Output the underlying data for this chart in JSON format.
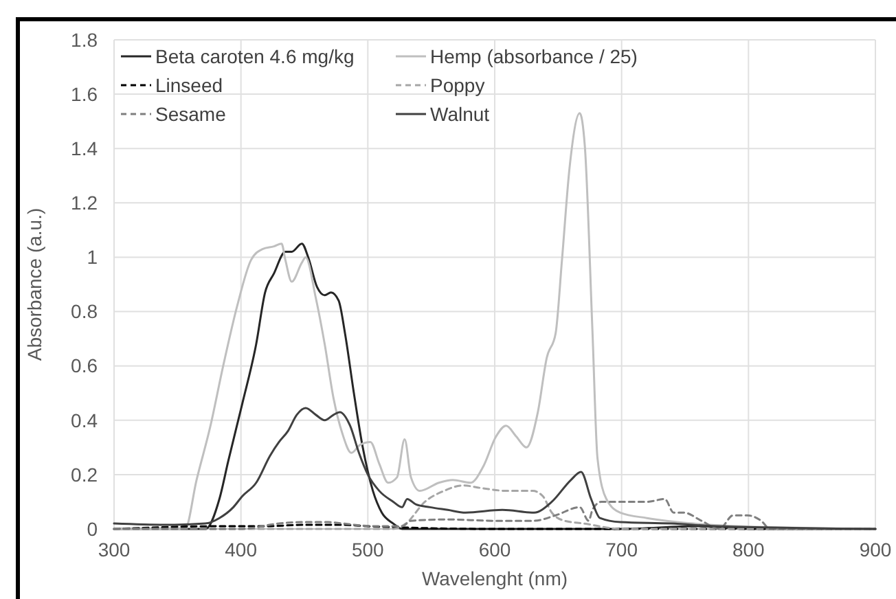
{
  "chart_data": {
    "type": "line",
    "xlabel": "Wavelenght (nm)",
    "ylabel": "Absorbance (a.u.)",
    "xlim": [
      300,
      900
    ],
    "xticks": [
      300,
      400,
      500,
      600,
      700,
      800,
      900
    ],
    "ylim": [
      0,
      1.8
    ],
    "yticks": [
      0,
      0.2,
      0.4,
      0.6,
      0.8,
      1,
      1.2,
      1.4,
      1.6,
      1.8
    ],
    "grid": true,
    "legend": "top left",
    "series": [
      {
        "name": "Beta caroten 4.6 mg/kg",
        "color": "#262626",
        "line_style": "solid",
        "x": [
          300,
          372,
          383,
          390,
          401,
          412,
          419,
          426,
          435,
          440,
          448,
          453,
          460,
          466,
          471,
          477,
          482,
          489,
          496,
          504,
          511,
          520,
          527,
          600,
          700,
          760,
          800,
          900
        ],
        "values": [
          0,
          0,
          0.11,
          0.25,
          0.46,
          0.68,
          0.87,
          0.94,
          1.02,
          1.02,
          1.05,
          1.0,
          0.89,
          0.86,
          0.87,
          0.84,
          0.72,
          0.5,
          0.3,
          0.14,
          0.06,
          0.02,
          0,
          0,
          0,
          0.01,
          0,
          0
        ]
      },
      {
        "name": "Hemp (absorbance / 25)",
        "color": "#bfbfbf",
        "line_style": "solid",
        "x": [
          300,
          356,
          365,
          376,
          386,
          397,
          408,
          417,
          426,
          432,
          435,
          440,
          448,
          451,
          459,
          466,
          473,
          480,
          487,
          494,
          502,
          509,
          516,
          523,
          529,
          534,
          541,
          556,
          567,
          581,
          591,
          601,
          609,
          617,
          625,
          634,
          641,
          648,
          653,
          659,
          667,
          671,
          677,
          681,
          688,
          699,
          720,
          756,
          792,
          900
        ],
        "values": [
          0,
          0,
          0.18,
          0.38,
          0.6,
          0.82,
          0.99,
          1.03,
          1.04,
          1.05,
          0.99,
          0.91,
          0.98,
          1.0,
          0.85,
          0.68,
          0.48,
          0.35,
          0.28,
          0.31,
          0.32,
          0.24,
          0.17,
          0.19,
          0.33,
          0.19,
          0.14,
          0.17,
          0.18,
          0.17,
          0.23,
          0.34,
          0.38,
          0.34,
          0.3,
          0.43,
          0.63,
          0.72,
          0.99,
          1.33,
          1.53,
          1.41,
          0.73,
          0.26,
          0.11,
          0.06,
          0.04,
          0.02,
          0.01,
          0
        ]
      },
      {
        "name": "Linseed",
        "color": "#000000",
        "line_style": "dashed",
        "x": [
          300,
          383,
          420,
          448,
          480,
          500,
          530,
          600,
          700,
          900
        ],
        "values": [
          0,
          0.01,
          0.01,
          0.015,
          0.015,
          0.01,
          0.005,
          0,
          0,
          0
        ]
      },
      {
        "name": "Poppy",
        "color": "#a6a6a6",
        "line_style": "dashed",
        "x": [
          300,
          520,
          530,
          545,
          560,
          575,
          590,
          610,
          630,
          638,
          645,
          655,
          670,
          700,
          900
        ],
        "values": [
          0,
          0,
          0.02,
          0.1,
          0.14,
          0.16,
          0.15,
          0.14,
          0.14,
          0.12,
          0.06,
          0.03,
          0.02,
          0,
          0
        ]
      },
      {
        "name": "Sesame",
        "color": "#7f7f7f",
        "line_style": "dashed",
        "x": [
          300,
          400,
          430,
          448,
          469,
          480,
          505,
          527,
          534,
          563,
          599,
          613,
          631,
          648,
          667,
          674,
          677,
          684,
          700,
          720,
          734,
          741,
          749,
          763,
          777,
          788,
          799,
          810,
          817,
          900
        ],
        "values": [
          0,
          0,
          0.02,
          0.025,
          0.025,
          0.02,
          0.01,
          0.01,
          0.03,
          0.035,
          0.03,
          0.03,
          0.03,
          0.05,
          0.08,
          0.03,
          0.07,
          0.1,
          0.1,
          0.1,
          0.11,
          0.06,
          0.06,
          0.03,
          0,
          0.05,
          0.05,
          0.03,
          0,
          0
        ]
      },
      {
        "name": "Walnut",
        "color": "#404040",
        "line_style": "solid",
        "x": [
          300,
          340,
          372,
          383,
          394,
          401,
          412,
          423,
          430,
          437,
          444,
          451,
          459,
          466,
          473,
          478,
          486,
          493,
          500,
          509,
          520,
          527,
          531,
          538,
          549,
          563,
          577,
          606,
          631,
          645,
          660,
          668,
          676,
          683,
          699,
          739,
          775,
          900
        ],
        "values": [
          0.02,
          0.015,
          0.02,
          0.04,
          0.08,
          0.12,
          0.17,
          0.27,
          0.32,
          0.36,
          0.42,
          0.445,
          0.42,
          0.4,
          0.42,
          0.43,
          0.38,
          0.28,
          0.2,
          0.14,
          0.1,
          0.08,
          0.11,
          0.09,
          0.08,
          0.07,
          0.06,
          0.07,
          0.06,
          0.1,
          0.18,
          0.21,
          0.11,
          0.04,
          0.025,
          0.02,
          0.01,
          0
        ]
      }
    ]
  }
}
